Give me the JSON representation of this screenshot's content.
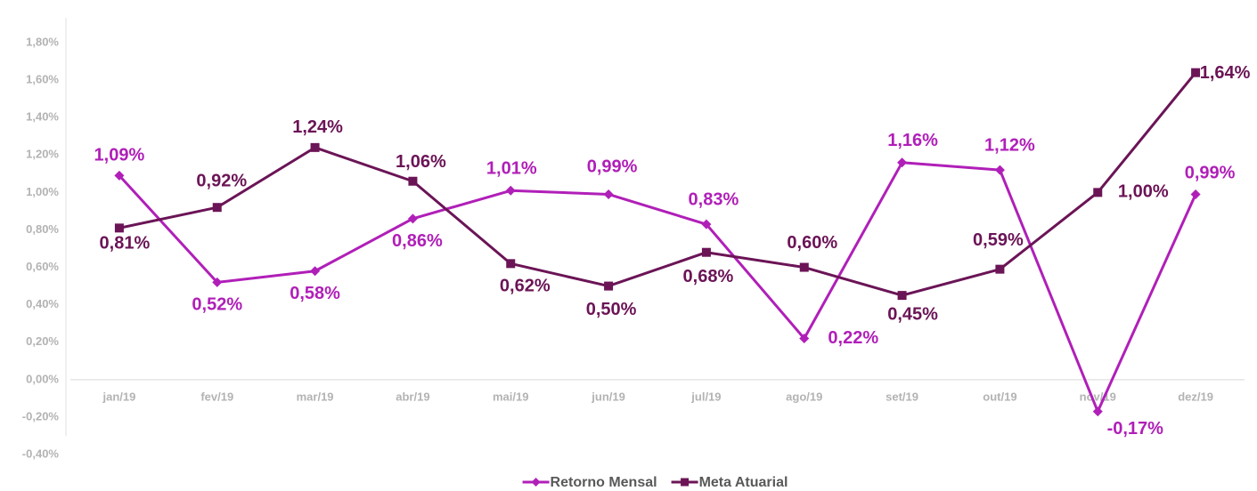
{
  "chart_data": {
    "type": "line",
    "categories": [
      "jan/19",
      "fev/19",
      "mar/19",
      "abr/19",
      "mai/19",
      "jun/19",
      "jul/19",
      "ago/19",
      "set/19",
      "out/19",
      "nov/19",
      "dez/19"
    ],
    "series": [
      {
        "name": "Retorno Mensal",
        "color": "#b01fb8",
        "marker": "diamond",
        "values": [
          1.09,
          0.52,
          0.58,
          0.86,
          1.01,
          0.99,
          0.83,
          0.22,
          1.16,
          1.12,
          -0.17,
          0.99
        ],
        "value_labels": [
          "1,09%",
          "0,52%",
          "0,58%",
          "0,86%",
          "1,01%",
          "0,99%",
          "0,83%",
          "0,22%",
          "1,16%",
          "1,12%",
          "-0,17%",
          "0,99%"
        ]
      },
      {
        "name": "Meta Atuarial",
        "color": "#6b1456",
        "marker": "square",
        "values": [
          0.81,
          0.92,
          1.24,
          1.06,
          0.62,
          0.5,
          0.68,
          0.6,
          0.45,
          0.59,
          1.0,
          1.64
        ],
        "value_labels": [
          "0,81%",
          "0,92%",
          "1,24%",
          "1,06%",
          "0,62%",
          "0,50%",
          "0,68%",
          "0,60%",
          "0,45%",
          "0,59%",
          "1,00%",
          "1,64%"
        ]
      }
    ],
    "ylim": [
      -0.4,
      1.8
    ],
    "yticks": [
      {
        "value": -0.4,
        "label": "-0,40%"
      },
      {
        "value": -0.2,
        "label": "-0,20%"
      },
      {
        "value": 0,
        "label": "0,00%"
      },
      {
        "value": 0.2,
        "label": "0,20%"
      },
      {
        "value": 0.4,
        "label": "0,40%"
      },
      {
        "value": 0.6,
        "label": "0,60%"
      },
      {
        "value": 0.8,
        "label": "0,80%"
      },
      {
        "value": 1.0,
        "label": "1,00%"
      },
      {
        "value": 1.2,
        "label": "1,20%"
      },
      {
        "value": 1.4,
        "label": "1,40%"
      },
      {
        "value": 1.6,
        "label": "1,60%"
      },
      {
        "value": 1.8,
        "label": "1,80%"
      }
    ],
    "grid": false,
    "legend": "bottom"
  }
}
